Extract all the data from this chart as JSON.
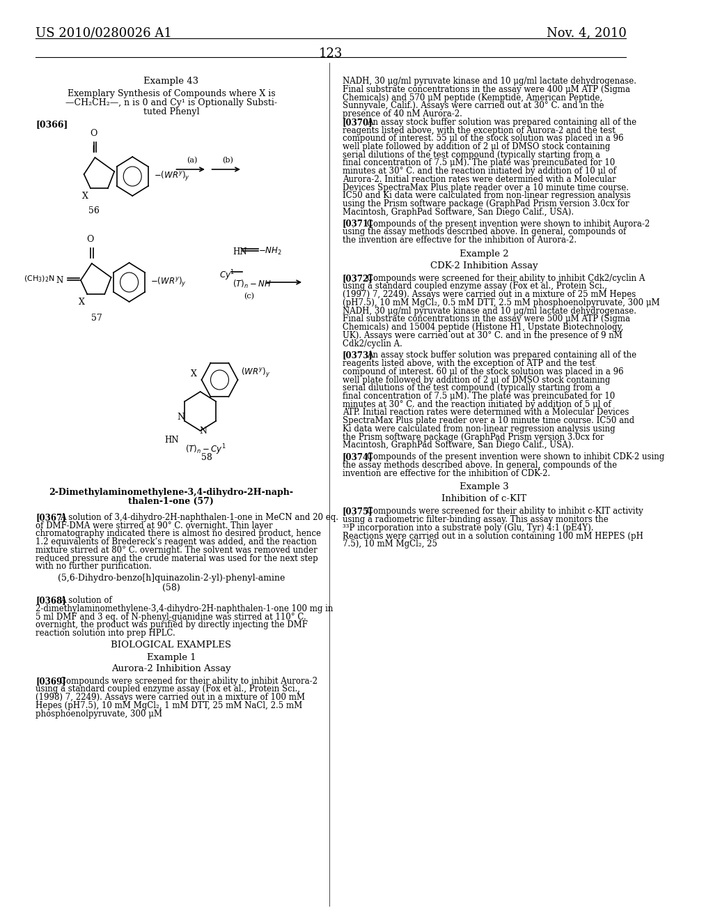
{
  "background_color": "#ffffff",
  "header_left": "US 2010/0280026 A1",
  "header_right": "Nov. 4, 2010",
  "page_number": "123",
  "left_column": {
    "example_title": "Example 43",
    "example_subtitle_lines": [
      "Exemplary Synthesis of Compounds where X is",
      "—CH₂CH₂—, n is 0 and Cy¹ is Optionally Substi-",
      "tuted Phenyl"
    ],
    "paragraph_tag1": "[0366]",
    "compound56_label": "56",
    "compound57_label": "57",
    "compound58_label": "58",
    "arrow_a_label": "(a)",
    "arrow_b_label": "(b)",
    "arrow_c_label": "(c)",
    "compound_name_lines": [
      "2-Dimethylaminomethylene-3,4-dihydro-2H-naph-",
      "thalen-1-one (57)"
    ],
    "paragraph_tag2": "[0367]",
    "para2_text": "A solution of 3,4-dihydro-2H-naphthalen-1-one in MeCN and 20 eq. of DMF-DMA were stirred at 90° C. overnight. Thin layer chromatography indicated there is almost no desired product, hence 1.2 equivalents of Bredereck’s reagent was added, and the reaction mixture stirred at 80° C. overnight. The solvent was removed under reduced pressure and the crude material was used for the next step with no further purification.",
    "paragraph_tag3": "[0368]",
    "compound58_name": "(5,6-Dihydro-benzo[h]quinazolin-2-yl)-phenyl-amine",
    "compound58_name2": "(58)",
    "para3_text": "A solution of 2-dimethylaminomethylene-3,4-dihydro-2H-naphthalen-1-one 100 mg in 5 ml DMF and 3 eq. of N-phenyl-guanidine was stirred at 110° C. overnight, the product was purified by directly injecting the DMF reaction solution into prep HPLC.",
    "bio_examples_title": "BIOLOGICAL EXAMPLES",
    "example1_title": "Example 1",
    "example1_subtitle": "Aurora-2 Inhibition Assay",
    "paragraph_tag4": "[0369]",
    "para4_text": "Compounds were screened for their ability to inhibit Aurora-2 using a standard coupled enzyme assay (Fox et al., Protein Sci., (1998) 7, 2249). Assays were carried out in a mixture of 100 mM Hepes (pH7.5), 10 mM MgCl₂, 1 mM DTT, 25 mM NaCl, 2.5 mM phosphoenolpyruvate, 300 μM"
  },
  "right_column": {
    "para_right1": "NADH, 30 μg/ml pyruvate kinase and 10 μg/ml lactate dehydrogenase. Final substrate concentrations in the assay were 400 μM ATP (Sigma Chemicals) and 570 μM peptide (Kemptide, American Peptide, Sunnyvale, Calif.). Assays were carried out at 30° C. and in the presence of 40 nM Aurora-2.",
    "paragraph_tag5": "[0370]",
    "para5_text": "An assay stock buffer solution was prepared containing all of the reagents listed above, with the exception of Aurora-2 and the test compound of interest. 55 μl of the stock solution was placed in a 96 well plate followed by addition of 2 μl of DMSO stock containing serial dilutions of the test compound (typically starting from a final concentration of 7.5 μM). The plate was preincubated for 10 minutes at 30° C. and the reaction initiated by addition of 10 μl of Aurora-2. Initial reaction rates were determined with a Molecular Devices SpectraMax Plus plate reader over a 10 minute time course. IC50 and Ki data were calculated from non-linear regression analysis using the Prism software package (GraphPad Prism version 3.0cx for Macintosh, GraphPad Software, San Diego Calif., USA).",
    "paragraph_tag6": "[0371]",
    "para6_text": "Compounds of the present invention were shown to inhibit Aurora-2 using the assay methods described above. In general, compounds of the invention are effective for the inhibition of Aurora-2.",
    "example2_title": "Example 2",
    "example2_subtitle": "CDK-2 Inhibition Assay",
    "paragraph_tag7": "[0372]",
    "para7_text": "Compounds were screened for their ability to inhibit Cdk2/cyclin A using a standard coupled enzyme assay (Fox et al., Protein Sci., (1997) 7, 2249). Assays were carried out in a mixture of 25 mM Hepes (pH7.5), 10 mM MgCl₂, 0.5 mM DTT, 2.5 mM phosphoenolpyruvate, 300 μM NADH, 30 μg/ml pyruvate kinase and 10 μg/ml lactate dehydrogenase. Final substrate concentrations in the assay were 500 μM ATP (Sigma Chemicals) and 15004 peptide (Histone H1, Upstate Biotechnology, UK). Assays were carried out at 30° C. and in the presence of 9 nM Cdk2/cyclin A.",
    "paragraph_tag8": "[0373]",
    "para8_text": "An assay stock buffer solution was prepared containing all of the reagents listed above, with the exception of ATP and the test compound of interest. 60 μl of the stock solution was placed in a 96 well plate followed by addition of 2 μl of DMSO stock containing serial dilutions of the test compound (typically starting from a final concentration of 7.5 μM). The plate was preincubated for 10 minutes at 30° C. and the reaction initiated by addition of 5 μl of ATP. Initial reaction rates were determined with a Molecular Devices SpectraMax Plus plate reader over a 10 minute time course. IC50 and Ki data were calculated from non-linear regression analysis using the Prism software package (GraphPad Prism version 3.0cx for Macintosh, GraphPad Software, San Diego Calif., USA).",
    "paragraph_tag9": "[0374]",
    "para9_text": "Compounds of the present invention were shown to inhibit CDK-2 using the assay methods described above. In general, compounds of the invention are effective for the inhibition of CDK-2.",
    "example3_title": "Example 3",
    "example3_subtitle": "Inhibition of c-KIT",
    "paragraph_tag10": "[0375]",
    "para10_text": "Compounds were screened for their ability to inhibit c-KIT activity using a radiometric filter-binding assay. This assay monitors the ³³P incorporation into a substrate poly (Glu, Tyr) 4:1 (pE4Y). Reactions were carried out in a solution containing 100 mM HEPES (pH 7.5), 10 mM MgCl₂, 25"
  }
}
